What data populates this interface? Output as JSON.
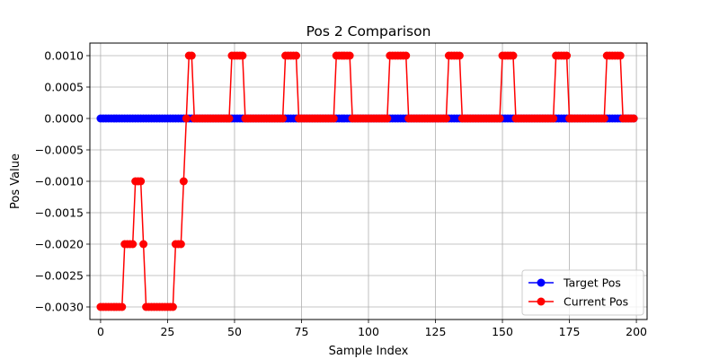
{
  "chart_data": {
    "type": "line",
    "title": "Pos 2 Comparison",
    "xlabel": "Sample Index",
    "ylabel": "Pos Value",
    "xlim": [
      -4,
      204
    ],
    "ylim": [
      -0.0032,
      0.0012
    ],
    "xticks": [
      0,
      25,
      50,
      75,
      100,
      125,
      150,
      175,
      200
    ],
    "xtick_labels": [
      "0",
      "25",
      "50",
      "75",
      "100",
      "125",
      "150",
      "175",
      "200"
    ],
    "yticks": [
      0.001,
      0.0005,
      0.0,
      -0.0005,
      -0.001,
      -0.0015,
      -0.002,
      -0.0025,
      -0.003
    ],
    "ytick_labels": [
      "0.0010",
      "0.0005",
      "0.0000",
      "−0.0005",
      "−0.0010",
      "−0.0015",
      "−0.0020",
      "−0.0025",
      "−0.0030"
    ],
    "grid": true,
    "legend_position": "lower-right",
    "series": [
      {
        "name": "Target Pos",
        "color": "#0000ff",
        "marker": "circle",
        "x_range": [
          0,
          199
        ],
        "constant_value": 0.0
      },
      {
        "name": "Current Pos",
        "color": "#ff0000",
        "marker": "circle",
        "values": [
          -0.003,
          -0.003,
          -0.003,
          -0.003,
          -0.003,
          -0.003,
          -0.003,
          -0.003,
          -0.003,
          -0.002,
          -0.002,
          -0.002,
          -0.002,
          -0.001,
          -0.001,
          -0.001,
          -0.002,
          -0.003,
          -0.003,
          -0.003,
          -0.003,
          -0.003,
          -0.003,
          -0.003,
          -0.003,
          -0.003,
          -0.003,
          -0.003,
          -0.002,
          -0.002,
          -0.002,
          -0.001,
          0.0,
          0.001,
          0.001,
          0.0,
          0.0,
          0.0,
          0.0,
          0.0,
          0.0,
          0.0,
          0.0,
          0.0,
          0.0,
          0.0,
          0.0,
          0.0,
          0.0,
          0.001,
          0.001,
          0.001,
          0.001,
          0.001,
          0.0,
          0.0,
          0.0,
          0.0,
          0.0,
          0.0,
          0.0,
          0.0,
          0.0,
          0.0,
          0.0,
          0.0,
          0.0,
          0.0,
          0.0,
          0.001,
          0.001,
          0.001,
          0.001,
          0.001,
          0.0,
          0.0,
          0.0,
          0.0,
          0.0,
          0.0,
          0.0,
          0.0,
          0.0,
          0.0,
          0.0,
          0.0,
          0.0,
          0.0,
          0.001,
          0.001,
          0.001,
          0.001,
          0.001,
          0.001,
          0.0,
          0.0,
          0.0,
          0.0,
          0.0,
          0.0,
          0.0,
          0.0,
          0.0,
          0.0,
          0.0,
          0.0,
          0.0,
          0.0,
          0.001,
          0.001,
          0.001,
          0.001,
          0.001,
          0.001,
          0.001,
          0.0,
          0.0,
          0.0,
          0.0,
          0.0,
          0.0,
          0.0,
          0.0,
          0.0,
          0.0,
          0.0,
          0.0,
          0.0,
          0.0,
          0.0,
          0.001,
          0.001,
          0.001,
          0.001,
          0.001,
          0.0,
          0.0,
          0.0,
          0.0,
          0.0,
          0.0,
          0.0,
          0.0,
          0.0,
          0.0,
          0.0,
          0.0,
          0.0,
          0.0,
          0.0,
          0.001,
          0.001,
          0.001,
          0.001,
          0.001,
          0.0,
          0.0,
          0.0,
          0.0,
          0.0,
          0.0,
          0.0,
          0.0,
          0.0,
          0.0,
          0.0,
          0.0,
          0.0,
          0.0,
          0.0,
          0.001,
          0.001,
          0.001,
          0.001,
          0.001,
          0.0,
          0.0,
          0.0,
          0.0,
          0.0,
          0.0,
          0.0,
          0.0,
          0.0,
          0.0,
          0.0,
          0.0,
          0.0,
          0.0,
          0.001,
          0.001,
          0.001,
          0.001,
          0.001,
          0.001,
          0.0,
          0.0,
          0.0,
          0.0,
          0.0
        ]
      }
    ]
  }
}
